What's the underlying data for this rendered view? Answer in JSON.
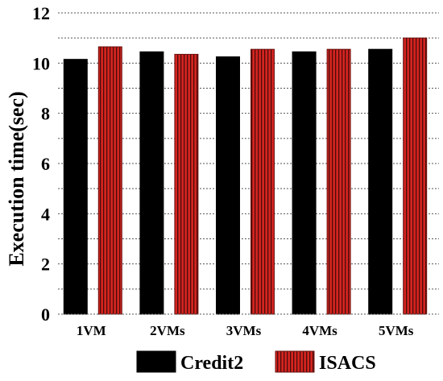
{
  "chart_data": {
    "type": "bar",
    "title": "",
    "xlabel": "",
    "ylabel": "Execution time(sec)",
    "ylim": [
      0,
      12
    ],
    "yticks": [
      "0",
      "2",
      "4",
      "6",
      "8",
      "10",
      "12"
    ],
    "categories": [
      "1VM",
      "2VMs",
      "3VMs",
      "4VMs",
      "5VMs"
    ],
    "series": [
      {
        "name": "Credit2",
        "values": [
          10.15,
          10.45,
          10.25,
          10.45,
          10.55
        ],
        "color": "#000000",
        "pattern": "solid"
      },
      {
        "name": "ISACS",
        "values": [
          10.65,
          10.35,
          10.55,
          10.55,
          11.0
        ],
        "color": "#c8201e",
        "pattern": "vertical-stripes"
      }
    ],
    "grid": "horizontal dotted",
    "legend_position": "bottom"
  }
}
